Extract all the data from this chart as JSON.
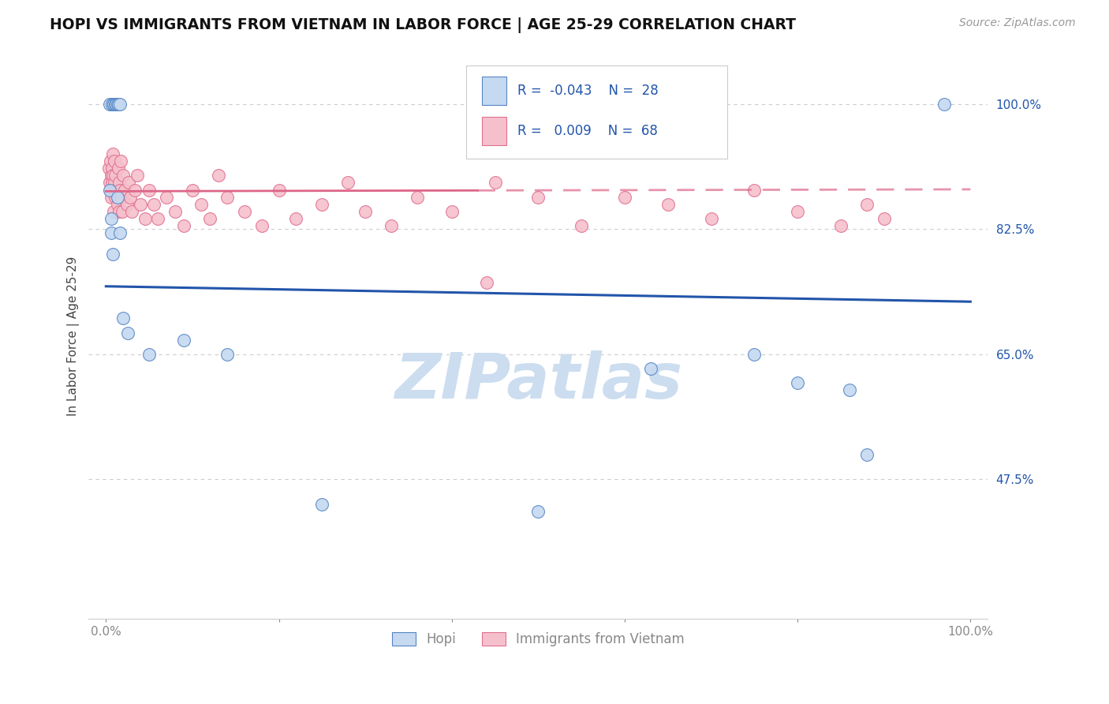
{
  "title": "HOPI VS IMMIGRANTS FROM VIETNAM IN LABOR FORCE | AGE 25-29 CORRELATION CHART",
  "source": "Source: ZipAtlas.com",
  "ylabel": "In Labor Force | Age 25-29",
  "xlim": [
    -0.02,
    1.02
  ],
  "ylim": [
    0.28,
    1.07
  ],
  "ytick_vals": [
    1.0,
    0.825,
    0.65,
    0.475
  ],
  "ytick_labels": [
    "100.0%",
    "82.5%",
    "65.0%",
    "47.5%"
  ],
  "xtick_vals": [
    0.0,
    0.2,
    0.4,
    0.6,
    0.8,
    1.0
  ],
  "xtick_labels": [
    "0.0%",
    "",
    "",
    "",
    "",
    "100.0%"
  ],
  "hopi_fill": "#c5d9f0",
  "hopi_edge": "#5585c5",
  "vietnam_fill": "#f5c0cc",
  "vietnam_edge": "#e07090",
  "hopi_line_color": "#2255aa",
  "vietnam_line_color": "#dd6688",
  "grid_color": "#cccccc",
  "legend_box_color": "#eeeeee",
  "legend_text_color": "#2255aa",
  "legend_hopi_R": "-0.043",
  "legend_hopi_N": "28",
  "legend_vietnam_R": "0.009",
  "legend_vietnam_N": "68",
  "watermark": "ZIPatlas",
  "watermark_color": "#ccddf0",
  "background_color": "#ffffff",
  "title_color": "#111111",
  "source_color": "#999999",
  "ylabel_color": "#444444",
  "tick_color": "#888888",
  "hopi_x": [
    0.004,
    0.007,
    0.009,
    0.009,
    0.011,
    0.012,
    0.013,
    0.014,
    0.016,
    0.004,
    0.006,
    0.006,
    0.008,
    0.013,
    0.016,
    0.02,
    0.025,
    0.05,
    0.09,
    0.14,
    0.25,
    0.5,
    0.63,
    0.75,
    0.8,
    0.86,
    0.88,
    0.97
  ],
  "hopi_y": [
    1.0,
    1.0,
    1.0,
    1.0,
    1.0,
    1.0,
    1.0,
    1.0,
    1.0,
    0.88,
    0.84,
    0.82,
    0.79,
    0.87,
    0.82,
    0.7,
    0.68,
    0.65,
    0.67,
    0.65,
    0.44,
    0.43,
    0.63,
    0.65,
    0.61,
    0.6,
    0.51,
    1.0
  ],
  "vietnam_x": [
    0.003,
    0.004,
    0.005,
    0.005,
    0.006,
    0.006,
    0.007,
    0.007,
    0.008,
    0.008,
    0.009,
    0.009,
    0.01,
    0.01,
    0.011,
    0.011,
    0.012,
    0.013,
    0.014,
    0.015,
    0.015,
    0.016,
    0.017,
    0.018,
    0.019,
    0.02,
    0.022,
    0.024,
    0.026,
    0.028,
    0.03,
    0.033,
    0.036,
    0.04,
    0.045,
    0.05,
    0.055,
    0.06,
    0.07,
    0.08,
    0.09,
    0.1,
    0.11,
    0.12,
    0.13,
    0.14,
    0.16,
    0.18,
    0.2,
    0.22,
    0.25,
    0.28,
    0.3,
    0.33,
    0.36,
    0.4,
    0.45,
    0.5,
    0.55,
    0.6,
    0.65,
    0.7,
    0.75,
    0.8,
    0.85,
    0.88,
    0.9,
    0.44
  ],
  "vietnam_y": [
    0.91,
    0.89,
    0.92,
    0.88,
    0.9,
    0.87,
    0.91,
    0.89,
    0.93,
    0.9,
    0.88,
    0.85,
    0.92,
    0.89,
    0.87,
    0.9,
    0.88,
    0.86,
    0.91,
    0.89,
    0.85,
    0.88,
    0.92,
    0.87,
    0.85,
    0.9,
    0.88,
    0.86,
    0.89,
    0.87,
    0.85,
    0.88,
    0.9,
    0.86,
    0.84,
    0.88,
    0.86,
    0.84,
    0.87,
    0.85,
    0.83,
    0.88,
    0.86,
    0.84,
    0.9,
    0.87,
    0.85,
    0.83,
    0.88,
    0.84,
    0.86,
    0.89,
    0.85,
    0.83,
    0.87,
    0.85,
    0.89,
    0.87,
    0.83,
    0.87,
    0.86,
    0.84,
    0.88,
    0.85,
    0.83,
    0.86,
    0.84,
    0.75
  ]
}
